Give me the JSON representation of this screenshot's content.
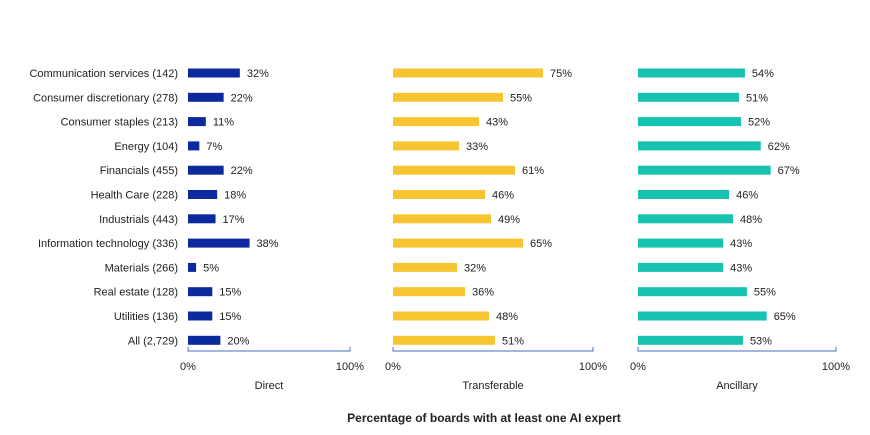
{
  "chart_data": {
    "type": "bar",
    "orientation": "horizontal",
    "categories": [
      "Communication services (142)",
      "Consumer discretionary (278)",
      "Consumer staples (213)",
      "Energy (104)",
      "Financials (455)",
      "Health Care (228)",
      "Industrials (443)",
      "Information technology (336)",
      "Materials (266)",
      "Real estate (128)",
      "Utilities (136)",
      "All (2,729)"
    ],
    "series": [
      {
        "name": "Direct",
        "color": "#0c2a9e",
        "values": [
          32,
          22,
          11,
          7,
          22,
          18,
          17,
          38,
          5,
          15,
          15,
          20
        ]
      },
      {
        "name": "Transferable",
        "color": "#f7c531",
        "values": [
          75,
          55,
          43,
          33,
          61,
          46,
          49,
          65,
          32,
          36,
          48,
          51
        ]
      },
      {
        "name": "Ancillary",
        "color": "#17c2b0",
        "values": [
          54,
          51,
          52,
          62,
          67,
          46,
          48,
          43,
          43,
          55,
          65,
          53
        ]
      }
    ],
    "xlim": [
      0,
      100
    ],
    "value_suffix": "%",
    "tick_labels": [
      "0%",
      "100%"
    ],
    "xlabel": "Percentage of boards with at least one AI expert",
    "grid": false,
    "axis_color": "#4a6fc7"
  }
}
